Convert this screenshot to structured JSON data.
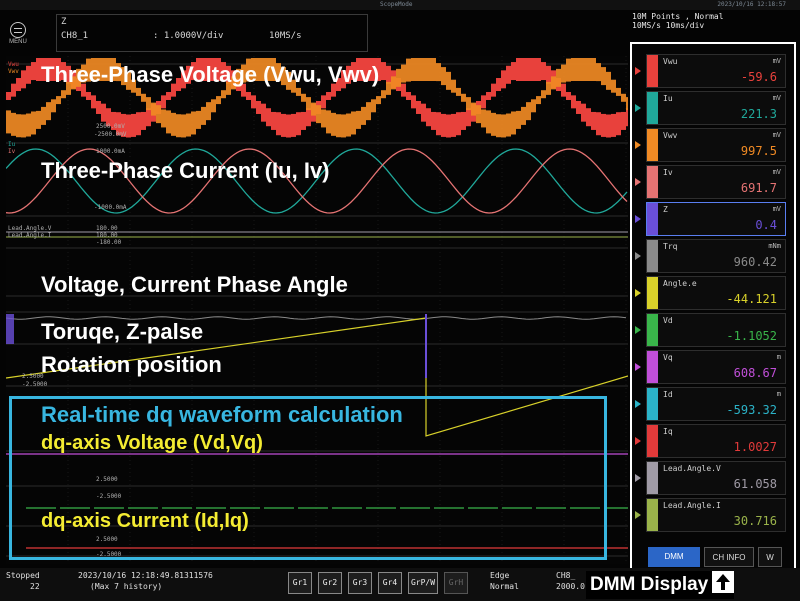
{
  "window": {
    "title": "ScopeMode",
    "datetime": "2023/10/16 12:18:57"
  },
  "menu": {
    "label": "MENU"
  },
  "channel": {
    "name": "Z",
    "id": "CH8_1",
    "scale": ": 1.0000V/div",
    "rate": "10MS/s"
  },
  "acquisition": {
    "line1": "10M Points , Normal",
    "line2": "10MS/s   10ms/div"
  },
  "overlays": {
    "voltage": "Three-Phase Voltage (Vwu, Vwv)",
    "current": "Three-Phase Current (Iu, Iv)",
    "phase": "Voltage, Current Phase Angle",
    "torque": "Toruqe, Z-palse",
    "rotation": "Rotation position",
    "dq_title": "Real-time dq waveform calculation",
    "dq_voltage": "dq-axis Voltage (Vd,Vq)",
    "dq_current": "dq-axis Current (Id,Iq)"
  },
  "axis_labels": {
    "v_top": "2500.0mV",
    "v_bot": "-2500.0mV",
    "i_top": "1000.0mA",
    "i_bot": "-1000.0mA",
    "lead_v": "Lead.Angle.V",
    "lead_i": "Lead.Angle.I",
    "lead_val": "180.00",
    "deg_top": "-180.00",
    "z_top": "2.5000",
    "z_bot": "-2.5000",
    "dq1": "2.5000",
    "dq2": "-2.5000",
    "dq3": "2.5000",
    "dq4": "-2.5000"
  },
  "dmm": {
    "rows": [
      {
        "label": "Vwu",
        "unit": "mV",
        "value": "-59.6",
        "color": "#e8413c"
      },
      {
        "label": "Iu",
        "unit": "mV",
        "value": "221.3",
        "color": "#20a89a"
      },
      {
        "label": "Vwv",
        "unit": "mV",
        "value": "997.5",
        "color": "#f08a24"
      },
      {
        "label": "Iv",
        "unit": "mV",
        "value": "691.7",
        "color": "#e57373"
      },
      {
        "label": "Z",
        "unit": "mV",
        "value": "0.4",
        "color": "#6a4fd8"
      },
      {
        "label": "Trq",
        "unit": "mNm",
        "value": "960.42",
        "color": "#8a8a8a"
      },
      {
        "label": "Angle.e",
        "unit": "",
        "value": "-44.121",
        "color": "#d8d12a"
      },
      {
        "label": "Vd",
        "unit": "",
        "value": "-1.1052",
        "color": "#39b54a"
      },
      {
        "label": "Vq",
        "unit": "m",
        "value": "608.67",
        "color": "#c04fd8"
      },
      {
        "label": "Id",
        "unit": "m",
        "value": "-593.32",
        "color": "#2bb3c8"
      },
      {
        "label": "Iq",
        "unit": "",
        "value": "1.0027",
        "color": "#e23a3a"
      },
      {
        "label": "Lead.Angle.V",
        "unit": "",
        "value": "61.058",
        "color": "#a09ba6"
      },
      {
        "label": "Lead.Angle.I",
        "unit": "",
        "value": "30.716",
        "color": "#9ab34a"
      }
    ],
    "tab_dmm": "DMM",
    "tab_info": "CH INFO",
    "tab_more": "W"
  },
  "status": {
    "state": "Stopped",
    "count": "22",
    "timestamp": "2023/10/16 12:18:49.81311576",
    "history": "(Max 7 history)",
    "groups": [
      "Gr1",
      "Gr2",
      "Gr3",
      "Gr4",
      "GrP/W",
      "GrH"
    ],
    "trigger_mode": "Edge",
    "trigger_sub": "Normal",
    "trig_ch": "CH8_",
    "trig_level": "2000.0"
  },
  "dmm_caption": "DMM Display"
}
